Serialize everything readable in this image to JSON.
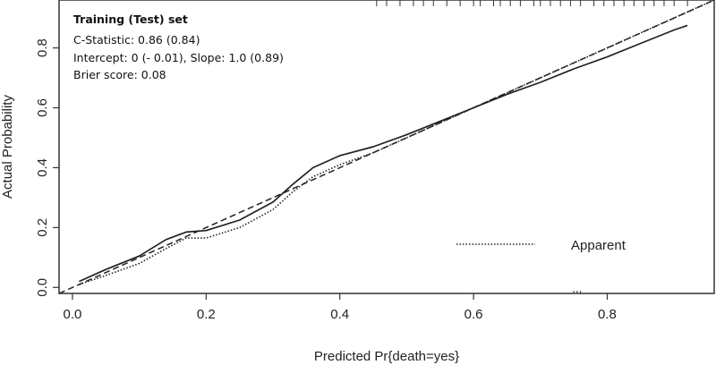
{
  "chart_data": {
    "type": "line",
    "xlabel": "Predicted Pr{death=yes}",
    "ylabel": "Actual Probability",
    "xlim": [
      -0.02,
      0.96
    ],
    "ylim": [
      -0.02,
      0.96
    ],
    "x_ticks": [
      0.0,
      0.2,
      0.4,
      0.6,
      0.8
    ],
    "x_tick_labels": [
      "0.0",
      "0.2",
      "0.4",
      "0.6",
      "0.8"
    ],
    "y_ticks": [
      0.0,
      0.2,
      0.4,
      0.6,
      0.8
    ],
    "y_tick_labels": [
      "0.0",
      "0.2",
      "0.4",
      "0.6",
      "0.8"
    ],
    "grid": false,
    "annotations": {
      "heading": "Training (Test) set",
      "lines": [
        "C-Statistic: 0.86 (0.84)",
        "Intercept: 0 (- 0.01), Slope: 1.0 (0.89)",
        "Brier score: 0.08"
      ]
    },
    "legend": {
      "position": "bottom-right",
      "entries": [
        {
          "label": "Apparent",
          "style": "dotted"
        }
      ]
    },
    "series": [
      {
        "style": "dashed",
        "x": [
          -0.02,
          0.96
        ],
        "y": [
          -0.02,
          0.96
        ]
      },
      {
        "style": "dotted",
        "x": [
          0.01,
          0.05,
          0.1,
          0.14,
          0.17,
          0.2,
          0.25,
          0.3,
          0.33,
          0.36,
          0.4,
          0.45,
          0.5,
          0.55,
          0.6,
          0.65,
          0.7,
          0.75,
          0.8,
          0.85,
          0.9,
          0.96
        ],
        "y": [
          0.01,
          0.04,
          0.08,
          0.13,
          0.165,
          0.165,
          0.2,
          0.26,
          0.32,
          0.37,
          0.41,
          0.45,
          0.5,
          0.55,
          0.6,
          0.65,
          0.7,
          0.75,
          0.8,
          0.85,
          0.9,
          0.96
        ]
      },
      {
        "style": "solid",
        "x": [
          0.01,
          0.05,
          0.1,
          0.14,
          0.17,
          0.2,
          0.25,
          0.3,
          0.33,
          0.36,
          0.4,
          0.45,
          0.5,
          0.55,
          0.6,
          0.65,
          0.7,
          0.75,
          0.8,
          0.85,
          0.9,
          0.92
        ],
        "y": [
          0.02,
          0.06,
          0.105,
          0.16,
          0.185,
          0.19,
          0.225,
          0.285,
          0.345,
          0.4,
          0.44,
          0.47,
          0.51,
          0.555,
          0.6,
          0.645,
          0.685,
          0.73,
          0.77,
          0.815,
          0.86,
          0.875
        ]
      }
    ],
    "rug_top": [
      0.455,
      0.47,
      0.49,
      0.51,
      0.525,
      0.54,
      0.56,
      0.58,
      0.6,
      0.61,
      0.63,
      0.64,
      0.655,
      0.67,
      0.69,
      0.7,
      0.715,
      0.73,
      0.745,
      0.76,
      0.78,
      0.795,
      0.81,
      0.825,
      0.84,
      0.855,
      0.87,
      0.885,
      0.9,
      0.92
    ],
    "rug_bottom": [
      0.75,
      0.755,
      0.76
    ]
  }
}
